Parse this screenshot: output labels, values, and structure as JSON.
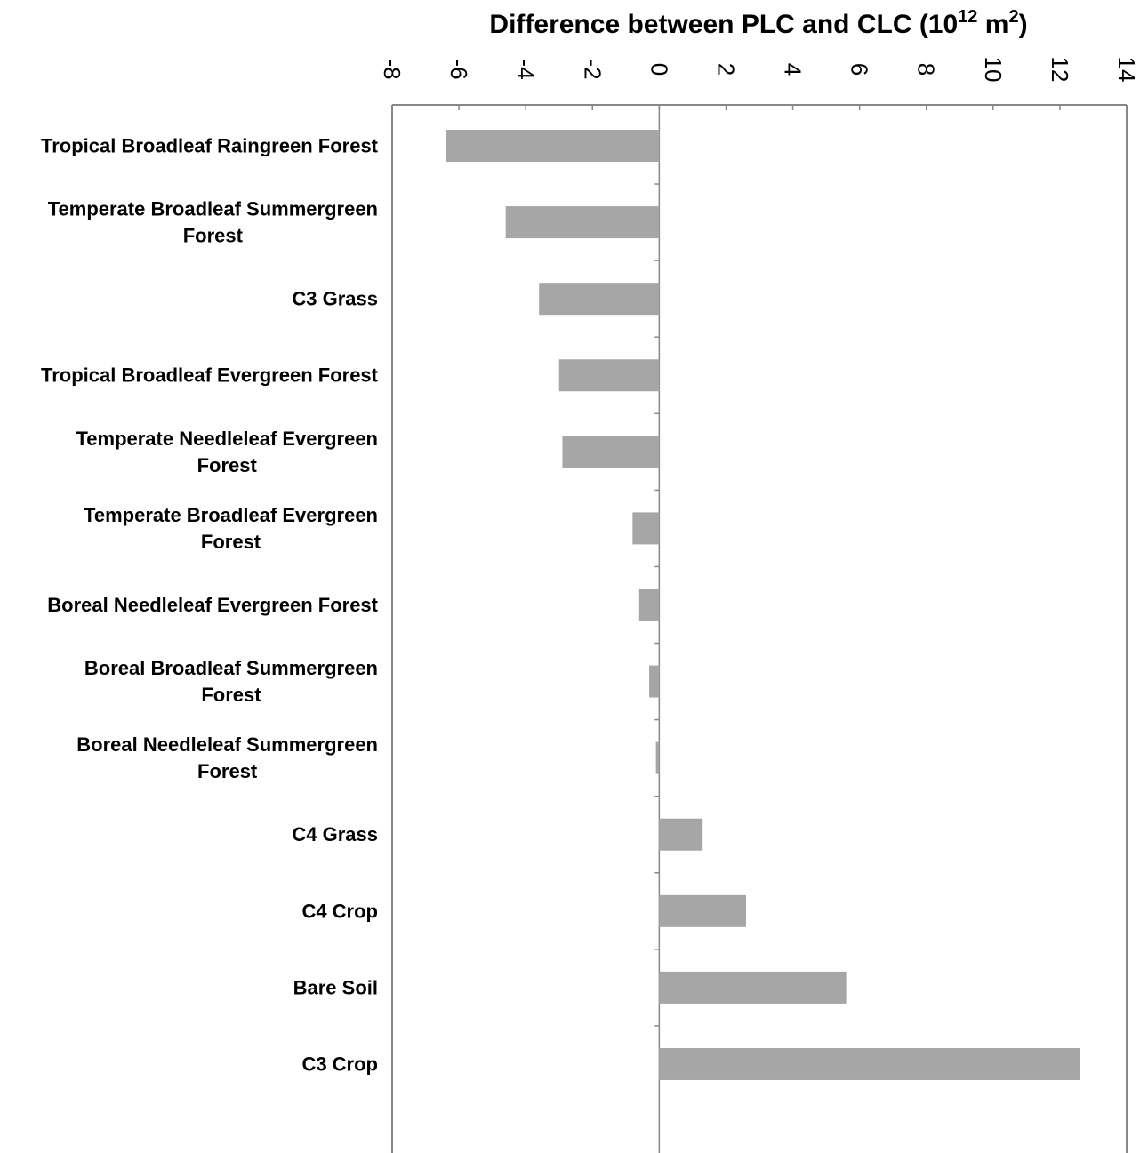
{
  "chart_data": {
    "type": "bar",
    "orientation": "horizontal",
    "title": {
      "main": "Difference between PLC and CLC (10",
      "sup1": "12",
      "mid": " m",
      "sup2": "2",
      "end": ")"
    },
    "xlim": [
      -8,
      14
    ],
    "xticks": [
      -8,
      -6,
      -4,
      -2,
      0,
      2,
      4,
      6,
      8,
      10,
      12,
      14
    ],
    "xtick_labels": [
      "-8",
      "-6",
      "-4",
      "-2",
      "0",
      "2",
      "4",
      "6",
      "8",
      "10",
      "12",
      "14"
    ],
    "axis_position": "top",
    "grid": false,
    "categories": [
      [
        "Tropical Broadleaf Raingreen Forest"
      ],
      [
        "Temperate Broadleaf Summergreen",
        "Forest"
      ],
      [
        "C3 Grass"
      ],
      [
        "Tropical Broadleaf Evergreen Forest"
      ],
      [
        "Temperate Needleleaf Evergreen",
        "Forest"
      ],
      [
        "Temperate Broadleaf Evergreen",
        "Forest"
      ],
      [
        "Boreal Needleleaf Evergreen Forest"
      ],
      [
        "Boreal Broadleaf Summergreen",
        "Forest"
      ],
      [
        "Boreal Needleleaf Summergreen",
        "Forest"
      ],
      [
        "C4 Grass"
      ],
      [
        "C4 Crop"
      ],
      [
        "Bare Soil"
      ],
      [
        "C3 Crop"
      ]
    ],
    "values": [
      -6.4,
      -4.6,
      -3.6,
      -3.0,
      -2.9,
      -0.8,
      -0.6,
      -0.3,
      -0.1,
      1.3,
      2.6,
      5.6,
      12.6
    ],
    "colors": {
      "bar": "#a6a6a6",
      "axis": "#888888"
    }
  }
}
